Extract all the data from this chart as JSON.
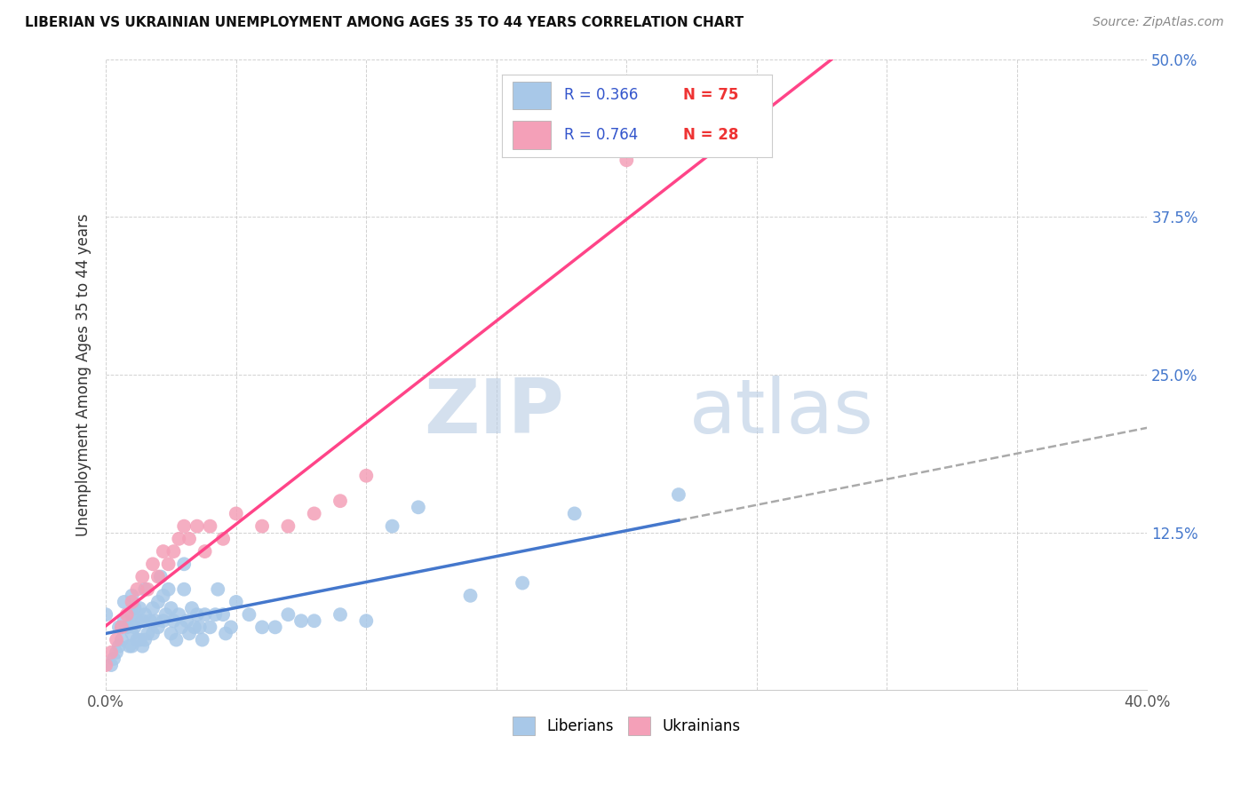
{
  "title": "LIBERIAN VS UKRAINIAN UNEMPLOYMENT AMONG AGES 35 TO 44 YEARS CORRELATION CHART",
  "source": "Source: ZipAtlas.com",
  "ylabel": "Unemployment Among Ages 35 to 44 years",
  "xlim": [
    0.0,
    0.4
  ],
  "ylim": [
    0.0,
    0.5
  ],
  "liberian_R": 0.366,
  "liberian_N": 75,
  "ukrainian_R": 0.764,
  "ukrainian_N": 28,
  "liberian_color": "#a8c8e8",
  "ukrainian_color": "#f4a0b8",
  "liberian_line_color": "#4477cc",
  "ukrainian_line_color": "#ff4488",
  "liberian_line_dash": "solid",
  "ukrainian_line_dash": "solid",
  "extend_line_color": "#aaaaaa",
  "watermark_zip": "ZIP",
  "watermark_atlas": "atlas",
  "watermark_color": "#ccddeeff",
  "legend_R_color": "#3355cc",
  "legend_N_color": "#ee3333",
  "liberian_x": [
    0.0,
    0.002,
    0.003,
    0.004,
    0.005,
    0.005,
    0.006,
    0.007,
    0.007,
    0.008,
    0.009,
    0.01,
    0.01,
    0.01,
    0.01,
    0.011,
    0.011,
    0.012,
    0.012,
    0.013,
    0.013,
    0.014,
    0.014,
    0.015,
    0.015,
    0.015,
    0.016,
    0.017,
    0.018,
    0.018,
    0.019,
    0.02,
    0.02,
    0.021,
    0.022,
    0.022,
    0.023,
    0.024,
    0.025,
    0.025,
    0.026,
    0.027,
    0.028,
    0.029,
    0.03,
    0.03,
    0.031,
    0.032,
    0.033,
    0.034,
    0.035,
    0.036,
    0.037,
    0.038,
    0.04,
    0.042,
    0.043,
    0.045,
    0.046,
    0.048,
    0.05,
    0.055,
    0.06,
    0.065,
    0.07,
    0.075,
    0.08,
    0.09,
    0.1,
    0.11,
    0.12,
    0.14,
    0.16,
    0.18,
    0.22
  ],
  "liberian_y": [
    0.06,
    0.02,
    0.025,
    0.03,
    0.035,
    0.05,
    0.04,
    0.055,
    0.07,
    0.05,
    0.035,
    0.045,
    0.06,
    0.075,
    0.035,
    0.05,
    0.065,
    0.04,
    0.055,
    0.04,
    0.065,
    0.035,
    0.055,
    0.04,
    0.06,
    0.08,
    0.045,
    0.055,
    0.045,
    0.065,
    0.055,
    0.05,
    0.07,
    0.09,
    0.055,
    0.075,
    0.06,
    0.08,
    0.045,
    0.065,
    0.055,
    0.04,
    0.06,
    0.05,
    0.08,
    0.1,
    0.055,
    0.045,
    0.065,
    0.05,
    0.06,
    0.05,
    0.04,
    0.06,
    0.05,
    0.06,
    0.08,
    0.06,
    0.045,
    0.05,
    0.07,
    0.06,
    0.05,
    0.05,
    0.06,
    0.055,
    0.055,
    0.06,
    0.055,
    0.13,
    0.145,
    0.075,
    0.085,
    0.14,
    0.155
  ],
  "ukrainian_x": [
    0.0,
    0.002,
    0.004,
    0.006,
    0.008,
    0.01,
    0.012,
    0.014,
    0.016,
    0.018,
    0.02,
    0.022,
    0.024,
    0.026,
    0.028,
    0.03,
    0.032,
    0.035,
    0.038,
    0.04,
    0.045,
    0.05,
    0.06,
    0.07,
    0.08,
    0.09,
    0.1,
    0.2
  ],
  "ukrainian_y": [
    0.02,
    0.03,
    0.04,
    0.05,
    0.06,
    0.07,
    0.08,
    0.09,
    0.08,
    0.1,
    0.09,
    0.11,
    0.1,
    0.11,
    0.12,
    0.13,
    0.12,
    0.13,
    0.11,
    0.13,
    0.12,
    0.14,
    0.13,
    0.13,
    0.14,
    0.15,
    0.17,
    0.42
  ]
}
